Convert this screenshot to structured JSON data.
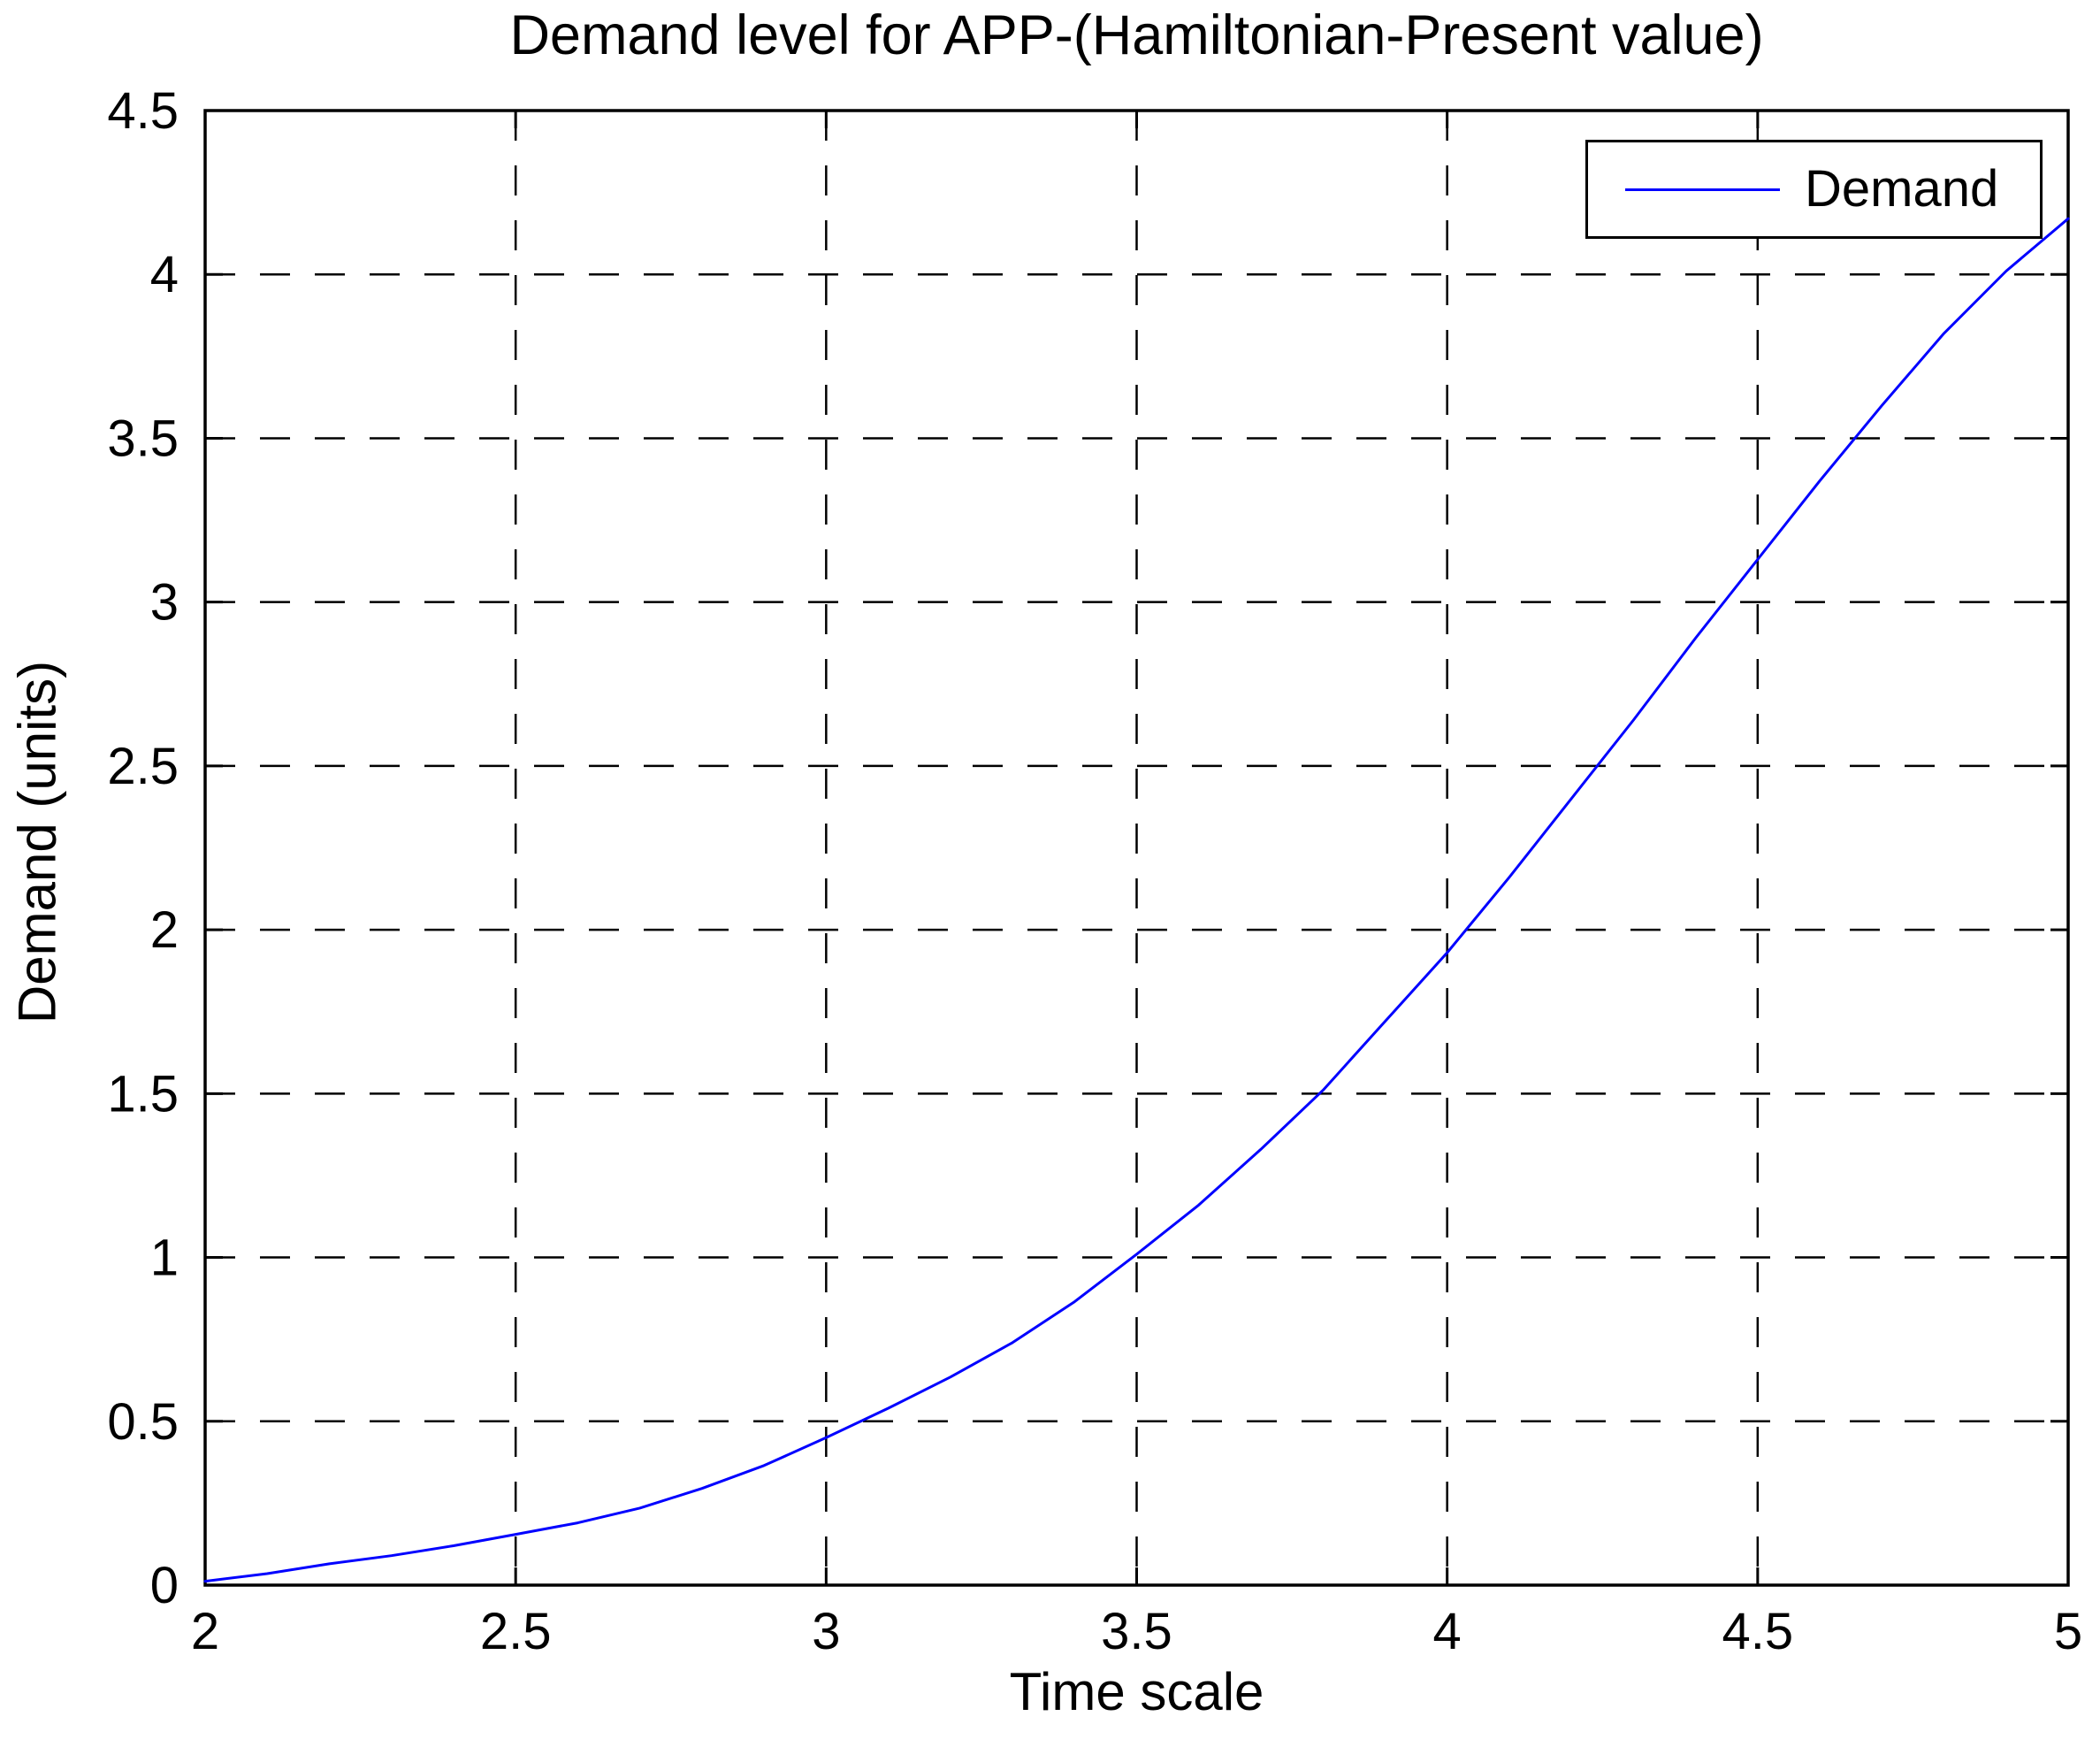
{
  "title": "Demand level for APP-(Hamiltonian-Present value)",
  "legend": {
    "label": "Demand",
    "position": "top-right"
  },
  "colors": {
    "line": "#0000FF",
    "axis": "#000000",
    "grid": "#000000",
    "background": "#FFFFFF",
    "text": "#000000"
  },
  "chart_data": {
    "type": "line",
    "title": "Demand level for APP-(Hamiltonian-Present value)",
    "xlabel": "Time scale",
    "ylabel": "Demand (units)",
    "xlim": [
      2,
      5
    ],
    "ylim": [
      0,
      4.5
    ],
    "x_ticks": [
      2,
      2.5,
      3,
      3.5,
      4,
      4.5,
      5
    ],
    "x_tick_labels": [
      "2",
      "2.5",
      "3",
      "3.5",
      "4",
      "4.5",
      "5"
    ],
    "y_ticks": [
      0,
      0.5,
      1,
      1.5,
      2,
      2.5,
      3,
      3.5,
      4,
      4.5
    ],
    "y_tick_labels": [
      "0",
      "0.5",
      "1",
      "1.5",
      "2",
      "2.5",
      "3",
      "3.5",
      "4",
      "4.5"
    ],
    "grid": true,
    "grid_style": "dashed",
    "legend_position": "top-right",
    "series": [
      {
        "name": "Demand",
        "color": "#0000FF",
        "x": [
          2.0,
          2.1,
          2.2,
          2.3,
          2.4,
          2.5,
          2.6,
          2.7,
          2.8,
          2.9,
          3.0,
          3.1,
          3.2,
          3.3,
          3.4,
          3.5,
          3.6,
          3.7,
          3.8,
          3.9,
          4.0,
          4.1,
          4.2,
          4.3,
          4.4,
          4.5,
          4.6,
          4.7,
          4.8,
          4.9,
          5.0
        ],
        "y": [
          0.012,
          0.035,
          0.065,
          0.09,
          0.12,
          0.155,
          0.19,
          0.235,
          0.295,
          0.365,
          0.45,
          0.54,
          0.635,
          0.74,
          0.865,
          1.01,
          1.16,
          1.33,
          1.51,
          1.72,
          1.93,
          2.16,
          2.4,
          2.64,
          2.89,
          3.13,
          3.37,
          3.6,
          3.82,
          4.01,
          4.17
        ]
      }
    ]
  }
}
